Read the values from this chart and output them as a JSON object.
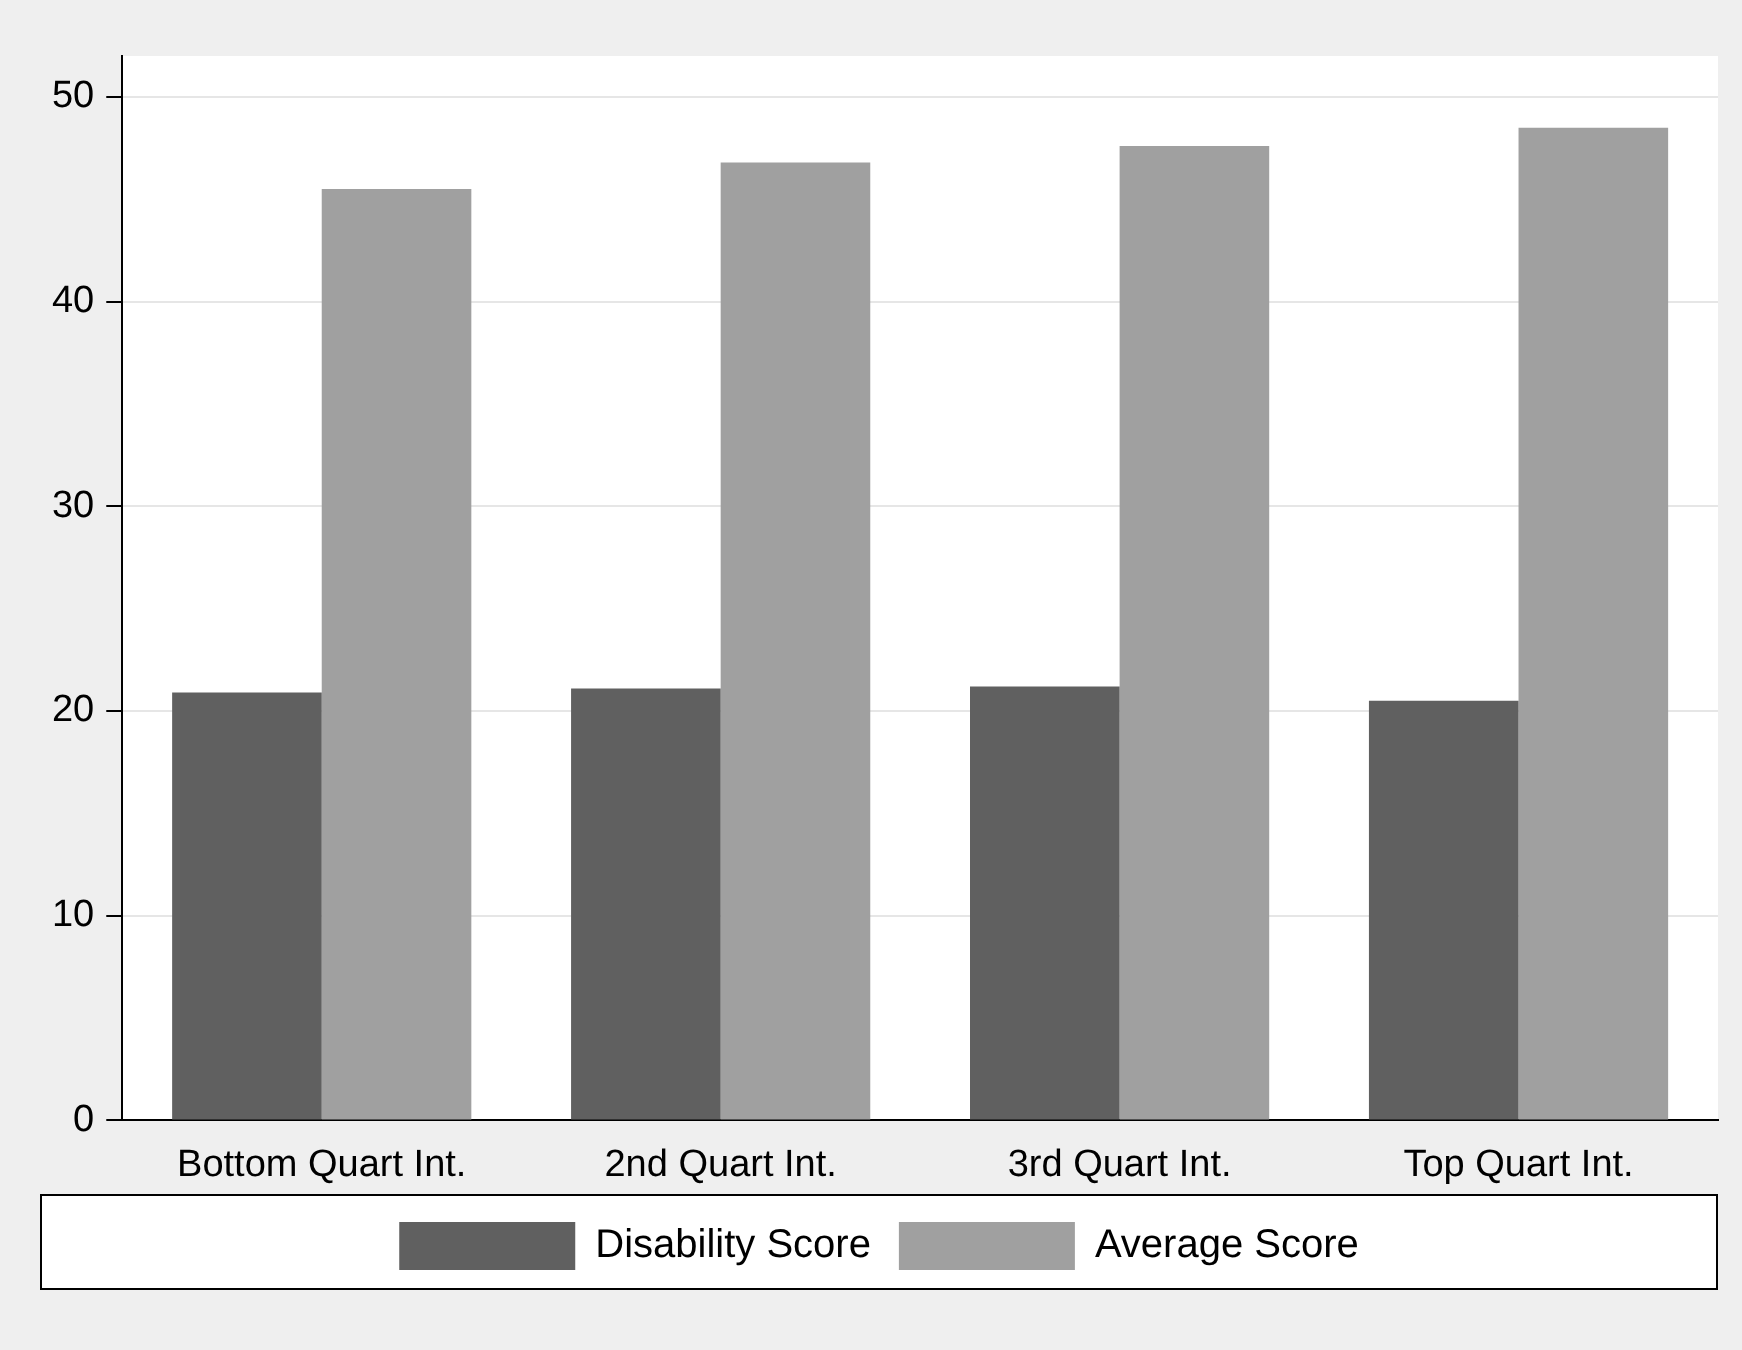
{
  "chart_data": {
    "type": "bar",
    "categories": [
      "Bottom Quart Int.",
      "2nd Quart Int.",
      "3rd Quart Int.",
      "Top Quart Int."
    ],
    "series": [
      {
        "name": "Disability Score",
        "color": "#606060",
        "values": [
          20.9,
          21.1,
          21.2,
          20.5
        ]
      },
      {
        "name": "Average Score",
        "color": "#a0a0a0",
        "values": [
          45.5,
          46.8,
          47.6,
          48.5
        ]
      }
    ],
    "ylim": [
      0,
      52
    ],
    "yticks": [
      0,
      10,
      20,
      30,
      40,
      50
    ],
    "grid": "y",
    "legend": "bottom"
  }
}
